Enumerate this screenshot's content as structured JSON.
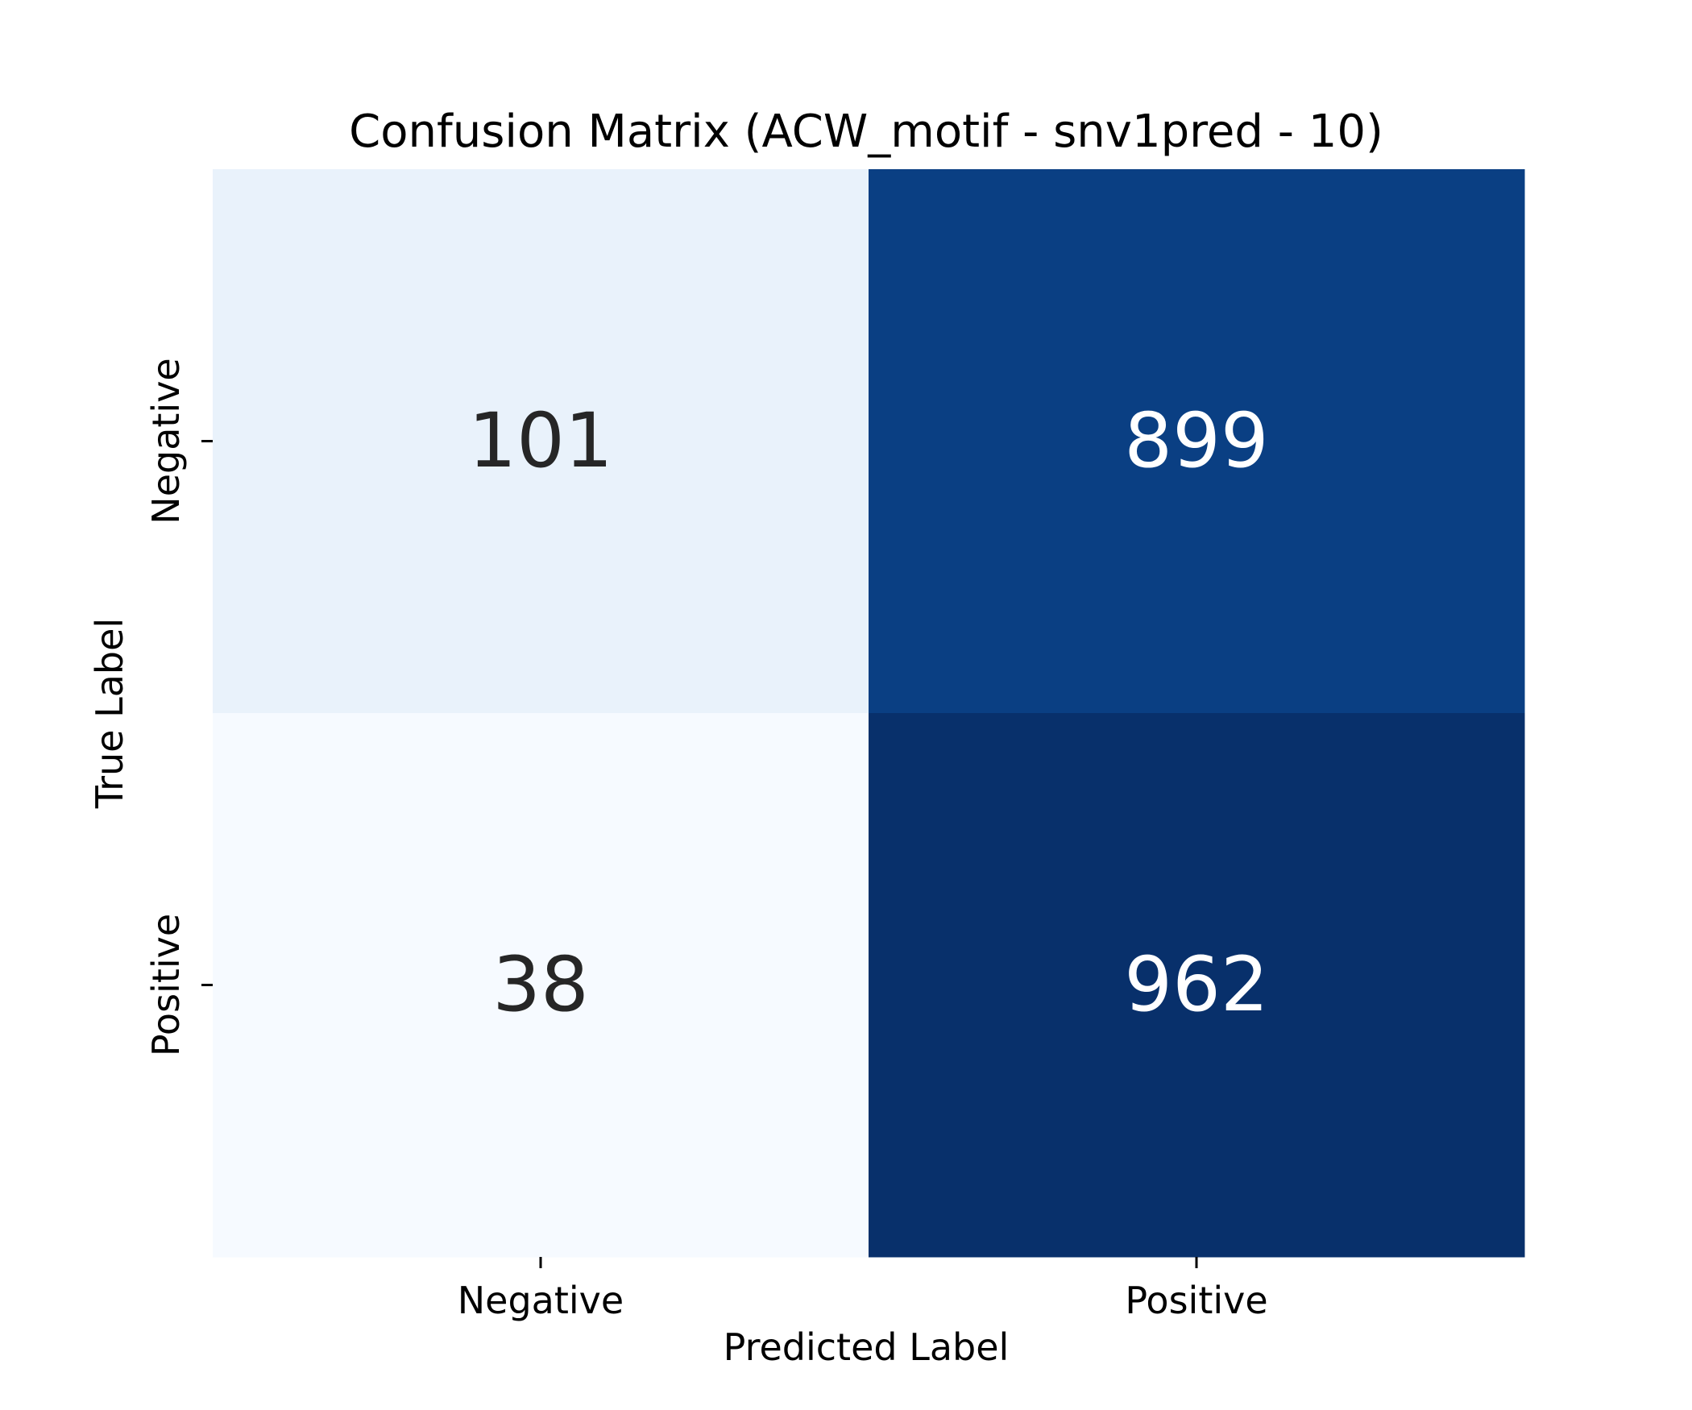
{
  "chart_data": {
    "type": "heatmap",
    "title": "Confusion Matrix (ACW_motif - snv1pred - 10)",
    "xlabel": "Predicted Label",
    "ylabel": "True Label",
    "x_categories": [
      "Negative",
      "Positive"
    ],
    "y_categories": [
      "Negative",
      "Positive"
    ],
    "values": [
      [
        101,
        899
      ],
      [
        38,
        962
      ]
    ],
    "colormap": "Blues",
    "colorbar": false,
    "cell_colors": [
      [
        "#e9f2fb",
        "#0a3f83"
      ],
      [
        "#f6faff",
        "#08306b"
      ]
    ],
    "text_colors": [
      [
        "#262626",
        "#ffffff"
      ],
      [
        "#262626",
        "#ffffff"
      ]
    ]
  }
}
